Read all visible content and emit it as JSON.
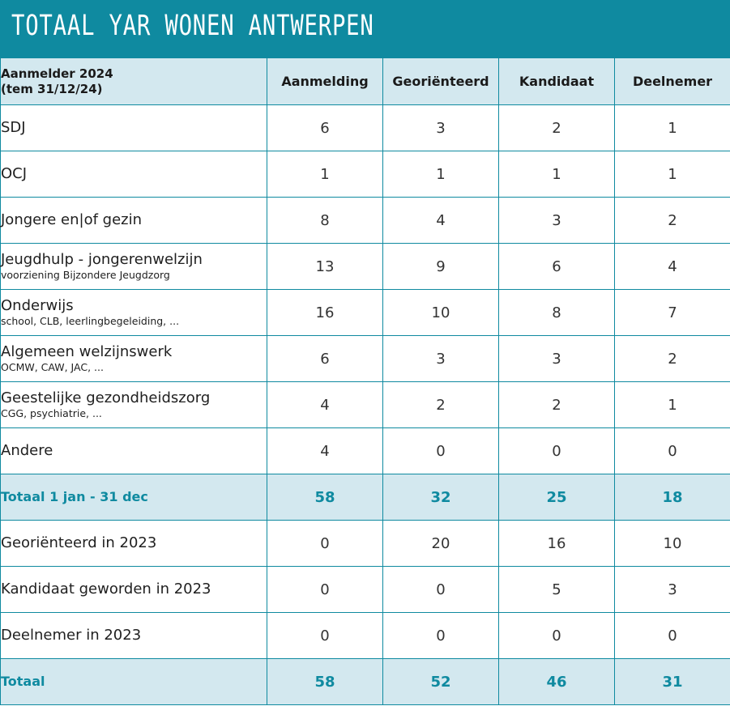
{
  "title": "TOTAAL YAR WONEN ANTWERPEN",
  "colors": {
    "accent": "#0f8aa0",
    "header_bg": "#d3e8ef"
  },
  "table": {
    "corner_line1": "Aanmelder 2024",
    "corner_line2": "(tem 31/12/24)",
    "columns": [
      "Aanmelding",
      "Georiënteerd",
      "Kandidaat",
      "Deelnemer"
    ],
    "rows": [
      {
        "label": "SDJ",
        "sub": "",
        "values": [
          "6",
          "3",
          "2",
          "1"
        ]
      },
      {
        "label": "OCJ",
        "sub": "",
        "values": [
          "1",
          "1",
          "1",
          "1"
        ]
      },
      {
        "label": "Jongere en|of gezin",
        "sub": "",
        "values": [
          "8",
          "4",
          "3",
          "2"
        ]
      },
      {
        "label": "Jeugdhulp - jongerenwelzijn",
        "sub": "voorziening Bijzondere Jeugdzorg",
        "values": [
          "13",
          "9",
          "6",
          "4"
        ]
      },
      {
        "label": "Onderwijs",
        "sub": "school, CLB, leerlingbegeleiding, ...",
        "values": [
          "16",
          "10",
          "8",
          "7"
        ]
      },
      {
        "label": "Algemeen welzijnswerk",
        "sub": "OCMW, CAW, JAC, ...",
        "values": [
          "6",
          "3",
          "3",
          "2"
        ]
      },
      {
        "label": "Geestelijke gezondheidszorg",
        "sub": "CGG, psychiatrie, ...",
        "values": [
          "4",
          "2",
          "2",
          "1"
        ]
      },
      {
        "label": "Andere",
        "sub": "",
        "values": [
          "4",
          "0",
          "0",
          "0"
        ]
      },
      {
        "label": "Totaal 1 jan - 31 dec",
        "sub": "",
        "values": [
          "58",
          "32",
          "25",
          "18"
        ],
        "total": true
      },
      {
        "label": "Georiënteerd in 2023",
        "sub": "",
        "values": [
          "0",
          "20",
          "16",
          "10"
        ]
      },
      {
        "label": "Kandidaat geworden in 2023",
        "sub": "",
        "values": [
          "0",
          "0",
          "5",
          "3"
        ]
      },
      {
        "label": "Deelnemer in 2023",
        "sub": "",
        "values": [
          "0",
          "0",
          "0",
          "0"
        ]
      },
      {
        "label": "Totaal",
        "sub": "",
        "values": [
          "58",
          "52",
          "46",
          "31"
        ],
        "total": true
      }
    ]
  }
}
